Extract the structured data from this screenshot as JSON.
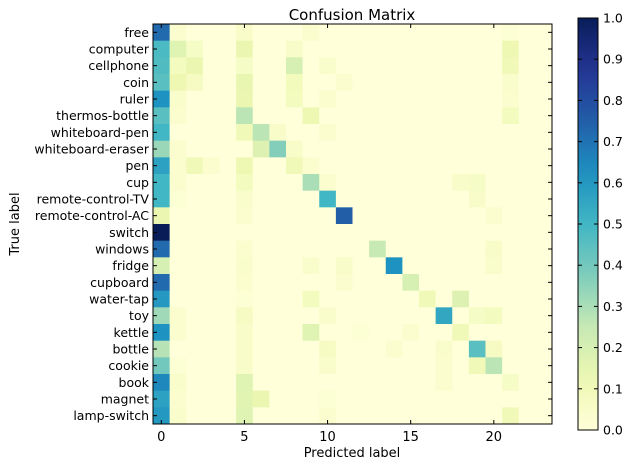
{
  "chart_data": {
    "type": "heatmap",
    "title": "Confusion Matrix",
    "xlabel": "Predicted label",
    "ylabel": "True label",
    "row_labels": [
      "free",
      "computer",
      "cellphone",
      "coin",
      "ruler",
      "thermos-bottle",
      "whiteboard-pen",
      "whiteboard-eraser",
      "pen",
      "cup",
      "remote-control-TV",
      "remote-control-AC",
      "switch",
      "windows",
      "fridge",
      "cupboard",
      "water-tap",
      "toy",
      "kettle",
      "bottle",
      "cookie",
      "book",
      "magnet",
      "lamp-switch"
    ],
    "x_ticks": [
      0,
      5,
      10,
      15,
      20
    ],
    "colorbar_ticks": [
      0.0,
      0.1,
      0.2,
      0.3,
      0.4,
      0.5,
      0.6,
      0.7,
      0.8,
      0.9,
      1.0
    ],
    "colorbar_tick_labels": [
      "0.0",
      "0.1",
      "0.2",
      "0.3",
      "0.4",
      "0.5",
      "0.6",
      "0.7",
      "0.8",
      "0.9",
      "1.0"
    ],
    "vlim": [
      0,
      1
    ],
    "colormap": "YlGnBu",
    "n_cols": 24,
    "rows": [
      [
        [
          0,
          0.72
        ],
        [
          1,
          0.03
        ],
        [
          5,
          0.05
        ],
        [
          9,
          0.03
        ],
        [
          21,
          0.02
        ]
      ],
      [
        [
          0,
          0.48
        ],
        [
          1,
          0.17
        ],
        [
          2,
          0.06
        ],
        [
          5,
          0.13
        ],
        [
          8,
          0.05
        ],
        [
          21,
          0.12
        ]
      ],
      [
        [
          0,
          0.47
        ],
        [
          1,
          0.08
        ],
        [
          2,
          0.13
        ],
        [
          5,
          0.06
        ],
        [
          8,
          0.2
        ],
        [
          10,
          0.04
        ],
        [
          21,
          0.1
        ]
      ],
      [
        [
          0,
          0.45
        ],
        [
          1,
          0.12
        ],
        [
          2,
          0.07
        ],
        [
          5,
          0.14
        ],
        [
          8,
          0.09
        ],
        [
          11,
          0.03
        ],
        [
          21,
          0.04
        ]
      ],
      [
        [
          0,
          0.62
        ],
        [
          1,
          0.04
        ],
        [
          5,
          0.13
        ],
        [
          8,
          0.08
        ],
        [
          10,
          0.03
        ],
        [
          21,
          0.03
        ]
      ],
      [
        [
          0,
          0.45
        ],
        [
          1,
          0.03
        ],
        [
          5,
          0.27
        ],
        [
          9,
          0.12
        ],
        [
          21,
          0.08
        ]
      ],
      [
        [
          0,
          0.5
        ],
        [
          5,
          0.1
        ],
        [
          6,
          0.27
        ],
        [
          7,
          0.05
        ],
        [
          10,
          0.03
        ]
      ],
      [
        [
          0,
          0.33
        ],
        [
          1,
          0.03
        ],
        [
          6,
          0.18
        ],
        [
          7,
          0.37
        ],
        [
          8,
          0.05
        ]
      ],
      [
        [
          0,
          0.57
        ],
        [
          1,
          0.03
        ],
        [
          2,
          0.1
        ],
        [
          3,
          0.03
        ],
        [
          5,
          0.12
        ],
        [
          8,
          0.1
        ],
        [
          9,
          0.03
        ]
      ],
      [
        [
          0,
          0.5
        ],
        [
          1,
          0.03
        ],
        [
          5,
          0.08
        ],
        [
          9,
          0.3
        ],
        [
          10,
          0.03
        ],
        [
          18,
          0.05
        ],
        [
          19,
          0.06
        ]
      ],
      [
        [
          0,
          0.5
        ],
        [
          1,
          0.02
        ],
        [
          5,
          0.04
        ],
        [
          10,
          0.5
        ],
        [
          19,
          0.05
        ]
      ],
      [
        [
          0,
          0.13
        ],
        [
          5,
          0.03
        ],
        [
          11,
          0.75
        ],
        [
          20,
          0.03
        ]
      ],
      [
        [
          0,
          1.0
        ]
      ],
      [
        [
          0,
          0.72
        ],
        [
          5,
          0.03
        ],
        [
          13,
          0.25
        ],
        [
          20,
          0.05
        ]
      ],
      [
        [
          0,
          0.2
        ],
        [
          5,
          0.04
        ],
        [
          9,
          0.04
        ],
        [
          11,
          0.05
        ],
        [
          14,
          0.62
        ],
        [
          20,
          0.04
        ]
      ],
      [
        [
          0,
          0.72
        ],
        [
          5,
          0.03
        ],
        [
          11,
          0.03
        ],
        [
          15,
          0.2
        ]
      ],
      [
        [
          0,
          0.6
        ],
        [
          5,
          0.02
        ],
        [
          9,
          0.08
        ],
        [
          16,
          0.1
        ],
        [
          18,
          0.18
        ]
      ],
      [
        [
          0,
          0.32
        ],
        [
          1,
          0.03
        ],
        [
          5,
          0.07
        ],
        [
          10,
          0.04
        ],
        [
          17,
          0.55
        ],
        [
          19,
          0.06
        ],
        [
          20,
          0.08
        ]
      ],
      [
        [
          0,
          0.62
        ],
        [
          1,
          0.03
        ],
        [
          5,
          0.05
        ],
        [
          9,
          0.17
        ],
        [
          12,
          0.02
        ],
        [
          15,
          0.03
        ],
        [
          18,
          0.1
        ]
      ],
      [
        [
          0,
          0.28
        ],
        [
          5,
          0.05
        ],
        [
          10,
          0.07
        ],
        [
          14,
          0.03
        ],
        [
          17,
          0.04
        ],
        [
          19,
          0.45
        ],
        [
          20,
          0.07
        ]
      ],
      [
        [
          0,
          0.4
        ],
        [
          1,
          0.02
        ],
        [
          5,
          0.05
        ],
        [
          10,
          0.04
        ],
        [
          17,
          0.03
        ],
        [
          19,
          0.1
        ],
        [
          20,
          0.27
        ]
      ],
      [
        [
          0,
          0.65
        ],
        [
          1,
          0.04
        ],
        [
          5,
          0.17
        ],
        [
          17,
          0.03
        ],
        [
          21,
          0.06
        ]
      ],
      [
        [
          0,
          0.57
        ],
        [
          1,
          0.03
        ],
        [
          5,
          0.16
        ],
        [
          6,
          0.13
        ],
        [
          10,
          0.02
        ]
      ],
      [
        [
          0,
          0.6
        ],
        [
          1,
          0.04
        ],
        [
          5,
          0.17
        ],
        [
          10,
          0.03
        ],
        [
          21,
          0.1
        ]
      ]
    ]
  }
}
